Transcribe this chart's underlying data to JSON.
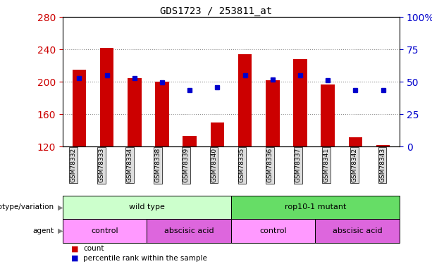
{
  "title": "GDS1723 / 253811_at",
  "samples": [
    "GSM78332",
    "GSM78333",
    "GSM78334",
    "GSM78338",
    "GSM78339",
    "GSM78340",
    "GSM78335",
    "GSM78336",
    "GSM78337",
    "GSM78341",
    "GSM78342",
    "GSM78343"
  ],
  "bar_heights": [
    215,
    242,
    205,
    200,
    133,
    150,
    234,
    202,
    228,
    197,
    131,
    122
  ],
  "bar_base": 120,
  "blue_dots": [
    205,
    208,
    205,
    199,
    190,
    193,
    208,
    203,
    208,
    202,
    190,
    190
  ],
  "left_ylim": [
    120,
    280
  ],
  "left_yticks": [
    120,
    160,
    200,
    240,
    280
  ],
  "right_ylim": [
    0,
    100
  ],
  "right_yticks": [
    0,
    25,
    50,
    75,
    100
  ],
  "right_yticklabels": [
    "0",
    "25",
    "50",
    "75",
    "100%"
  ],
  "bar_color": "#cc0000",
  "dot_color": "#0000cc",
  "left_tick_color": "#cc0000",
  "right_tick_color": "#0000cc",
  "grid_color": "#888888",
  "bg_color": "#ffffff",
  "plot_bg": "#ffffff",
  "genotype_groups": [
    {
      "label": "wild type",
      "start": 0,
      "end": 6,
      "color": "#ccffcc"
    },
    {
      "label": "rop10-1 mutant",
      "start": 6,
      "end": 12,
      "color": "#66dd66"
    }
  ],
  "agent_groups": [
    {
      "label": "control",
      "start": 0,
      "end": 3,
      "color": "#ff99ff"
    },
    {
      "label": "abscisic acid",
      "start": 3,
      "end": 6,
      "color": "#dd66dd"
    },
    {
      "label": "control",
      "start": 6,
      "end": 9,
      "color": "#ff99ff"
    },
    {
      "label": "abscisic acid",
      "start": 9,
      "end": 12,
      "color": "#dd66dd"
    }
  ],
  "genotype_label": "genotype/variation",
  "agent_label": "agent",
  "legend_count_label": "count",
  "legend_pct_label": "percentile rank within the sample"
}
